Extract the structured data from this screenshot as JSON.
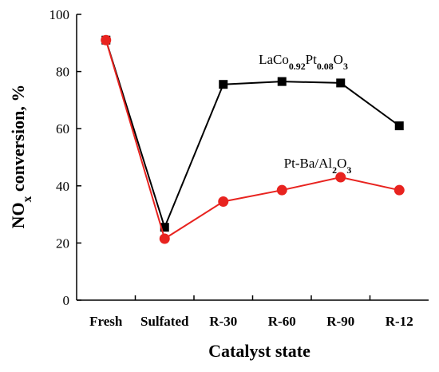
{
  "chart_data": {
    "type": "line",
    "categories": [
      "Fresh",
      "Sulfated",
      "R-30",
      "R-60",
      "R-90",
      "R-12"
    ],
    "series": [
      {
        "name": "LaCo0.92Pt0.08O3",
        "name_parts": [
          {
            "t": "LaCo",
            "sub": false
          },
          {
            "t": "0.92",
            "sub": true
          },
          {
            "t": "Pt",
            "sub": false
          },
          {
            "t": "0.08",
            "sub": true
          },
          {
            "t": "O",
            "sub": false
          },
          {
            "t": "3",
            "sub": true
          }
        ],
        "values": [
          91,
          25.5,
          75.5,
          76.5,
          76,
          61
        ],
        "color": "#000000",
        "marker": "square"
      },
      {
        "name": "Pt-Ba/Al2O3",
        "name_parts": [
          {
            "t": "Pt-Ba/Al",
            "sub": false
          },
          {
            "t": "2",
            "sub": true
          },
          {
            "t": "O",
            "sub": false
          },
          {
            "t": "3",
            "sub": true
          }
        ],
        "values": [
          91,
          21.5,
          34.5,
          38.5,
          43,
          38.5
        ],
        "color": "#e8231f",
        "marker": "circle"
      }
    ],
    "xlabel": "Catalyst state",
    "ylabel_parts": [
      {
        "t": "NO",
        "sub": false
      },
      {
        "t": "x",
        "sub": true
      },
      {
        "t": " conversion, %",
        "sub": false
      }
    ],
    "ylim": [
      0,
      100
    ],
    "yticks": [
      0,
      20,
      40,
      60,
      80,
      100
    ],
    "grid": false,
    "legend": "inline-labels"
  }
}
